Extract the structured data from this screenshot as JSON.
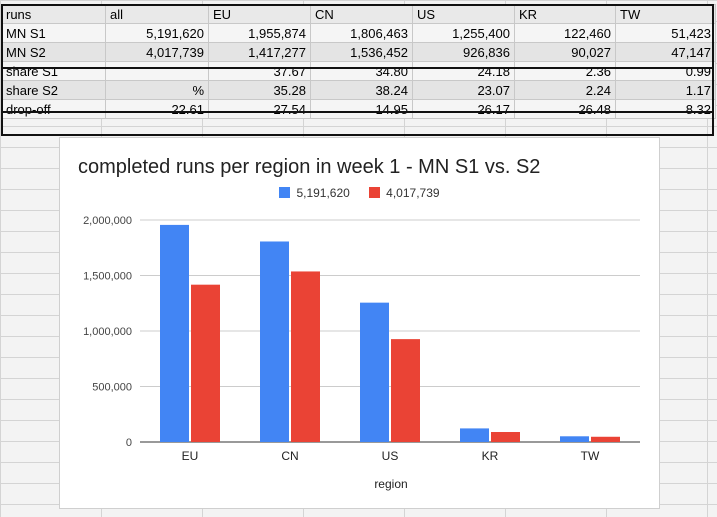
{
  "sheet": {
    "columns": [
      "runs",
      "all",
      "EU",
      "CN",
      "US",
      "KR",
      "TW"
    ],
    "rows": [
      {
        "label": "MN S1",
        "cells": [
          "5,191,620",
          "1,955,874",
          "1,806,463",
          "1,255,400",
          "122,460",
          "51,423"
        ]
      },
      {
        "label": "MN S2",
        "cells": [
          "4,017,739",
          "1,417,277",
          "1,536,452",
          "926,836",
          "90,027",
          "47,147"
        ]
      },
      {
        "label": "share S1",
        "cells": [
          "",
          "37.67",
          "34.80",
          "24.18",
          "2.36",
          "0.99"
        ]
      },
      {
        "label": "share S2",
        "cells": [
          "%",
          "35.28",
          "38.24",
          "23.07",
          "2.24",
          "1.17"
        ]
      },
      {
        "label": "drop-off",
        "cells": [
          "22.61",
          "27.54",
          "14.95",
          "26.17",
          "26.48",
          "8.32"
        ]
      }
    ]
  },
  "chart_data": {
    "type": "bar",
    "title": "completed runs per region in week 1 - MN S1 vs. S2",
    "xlabel": "region",
    "ylabel": "",
    "categories": [
      "EU",
      "CN",
      "US",
      "KR",
      "TW"
    ],
    "series": [
      {
        "name": "5,191,620",
        "color": "#4285f4",
        "values": [
          1955874,
          1806463,
          1255400,
          122460,
          51423
        ]
      },
      {
        "name": "4,017,739",
        "color": "#ea4335",
        "values": [
          1417277,
          1536452,
          926836,
          90027,
          47147
        ]
      }
    ],
    "ylim": [
      0,
      2000000
    ],
    "yticks": [
      0,
      500000,
      1000000,
      1500000,
      2000000
    ],
    "ytick_labels": [
      "0",
      "500,000",
      "1,000,000",
      "1,500,000",
      "2,000,000"
    ],
    "grid": true,
    "legend": "top-center"
  }
}
